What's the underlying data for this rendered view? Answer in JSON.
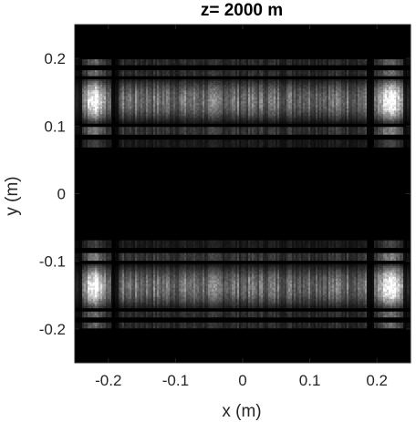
{
  "chart_data": {
    "type": "heatmap",
    "title": "z= 2000 m",
    "xlabel": "x (m)",
    "ylabel": "y (m)",
    "xlim": [
      -0.25,
      0.25
    ],
    "ylim": [
      -0.25,
      0.25
    ],
    "xticks": [
      -0.2,
      -0.1,
      0,
      0.1,
      0.2
    ],
    "xtick_labels": [
      "-0.2",
      "-0.1",
      "0",
      "0.1",
      "0.2"
    ],
    "yticks": [
      0.2,
      0.1,
      0,
      -0.1,
      -0.2
    ],
    "ytick_labels": [
      "0.2",
      "0.1",
      "0",
      "-0.1",
      "-0.2"
    ],
    "colormap": "gray",
    "grid": false,
    "description_bands_y": [
      {
        "y_range": [
          0.09,
          0.17
        ],
        "intensity": "high"
      },
      {
        "y_range": [
          -0.17,
          -0.09
        ],
        "intensity": "high"
      },
      {
        "y_range": [
          0.18,
          0.2
        ],
        "intensity": "low"
      },
      {
        "y_range": [
          -0.2,
          -0.18
        ],
        "intensity": "low"
      }
    ],
    "description_bright_columns_x": [
      -0.22,
      0.22
    ]
  }
}
